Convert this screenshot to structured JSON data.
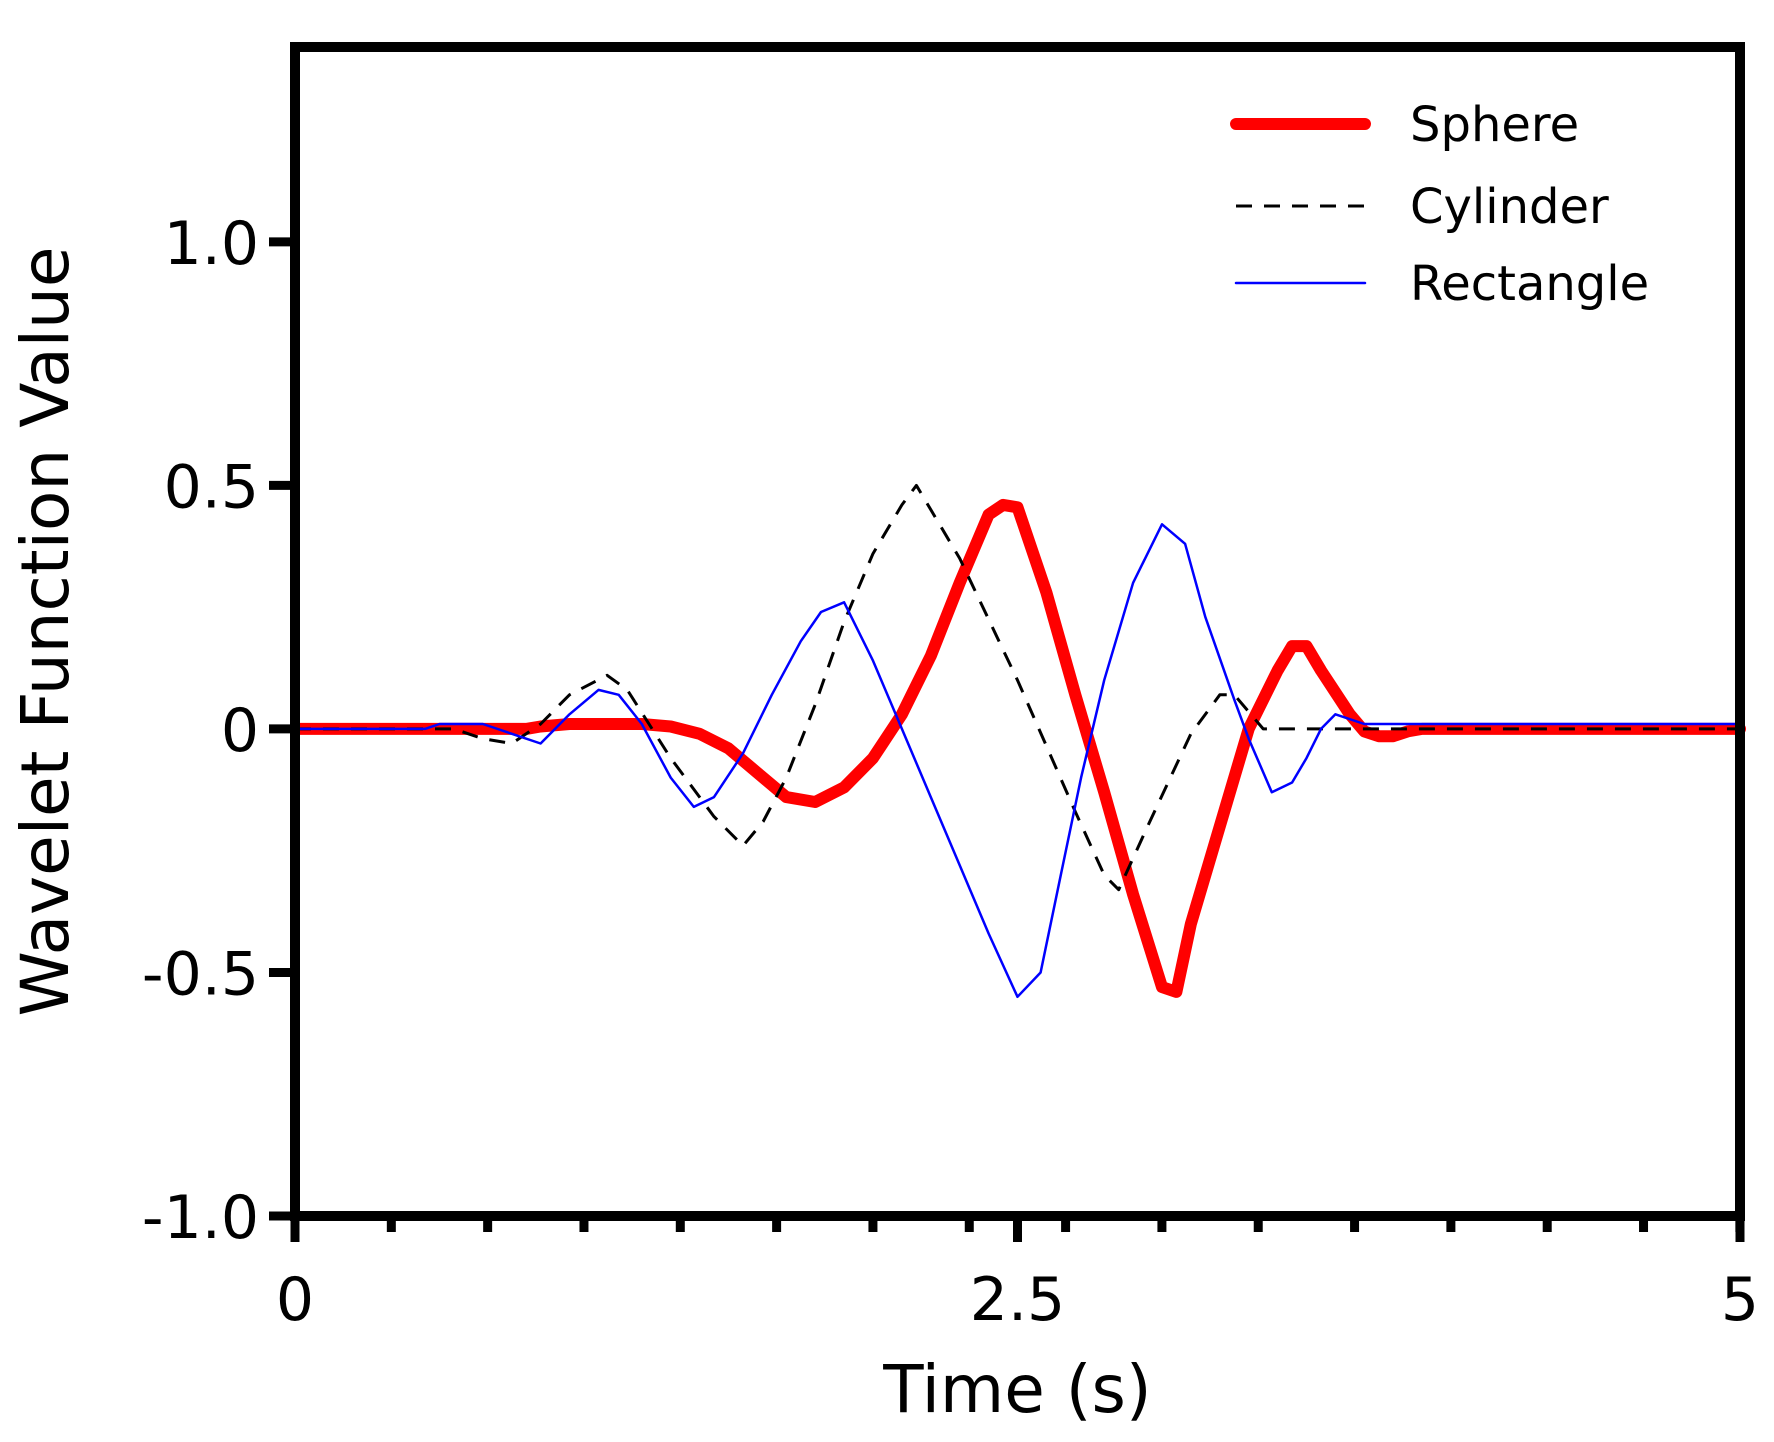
{
  "chart_data": {
    "type": "line",
    "title": "",
    "xlabel": "Time (s)",
    "ylabel": "Wavelet Function Value",
    "xlim": [
      0,
      5
    ],
    "ylim": [
      -1.0,
      1.4
    ],
    "xticks": [
      {
        "value": 0,
        "label": "0"
      },
      {
        "value": 2.5,
        "label": "2.5"
      },
      {
        "value": 5,
        "label": "5"
      }
    ],
    "x_minor_step": 0.3333,
    "yticks": [
      {
        "value": 1.0,
        "label": "1.0"
      },
      {
        "value": 0.5,
        "label": "0.5"
      },
      {
        "value": 0,
        "label": "0"
      },
      {
        "value": -0.5,
        "label": "-0.5"
      },
      {
        "value": -1.0,
        "label": "-1.0"
      }
    ],
    "grid": false,
    "legend_position": "top-right",
    "series": [
      {
        "name": "Sphere",
        "color": "#ff0000",
        "style": "solid-thick",
        "points": [
          [
            0,
            0
          ],
          [
            0.8,
            0
          ],
          [
            0.85,
            0.005
          ],
          [
            0.95,
            0.01
          ],
          [
            1.1,
            0.01
          ],
          [
            1.2,
            0.01
          ],
          [
            1.3,
            0.005
          ],
          [
            1.4,
            -0.01
          ],
          [
            1.5,
            -0.04
          ],
          [
            1.6,
            -0.09
          ],
          [
            1.7,
            -0.14
          ],
          [
            1.8,
            -0.15
          ],
          [
            1.9,
            -0.12
          ],
          [
            2.0,
            -0.06
          ],
          [
            2.1,
            0.03
          ],
          [
            2.2,
            0.15
          ],
          [
            2.3,
            0.3
          ],
          [
            2.4,
            0.44
          ],
          [
            2.45,
            0.46
          ],
          [
            2.5,
            0.455
          ],
          [
            2.6,
            0.28
          ],
          [
            2.7,
            0.07
          ],
          [
            2.8,
            -0.13
          ],
          [
            2.9,
            -0.34
          ],
          [
            3.0,
            -0.53
          ],
          [
            3.05,
            -0.54
          ],
          [
            3.1,
            -0.4
          ],
          [
            3.2,
            -0.2
          ],
          [
            3.3,
            0.0
          ],
          [
            3.4,
            0.12
          ],
          [
            3.45,
            0.17
          ],
          [
            3.5,
            0.17
          ],
          [
            3.55,
            0.12
          ],
          [
            3.65,
            0.03
          ],
          [
            3.7,
            -0.005
          ],
          [
            3.75,
            -0.015
          ],
          [
            3.8,
            -0.015
          ],
          [
            3.85,
            -0.005
          ],
          [
            3.9,
            0
          ],
          [
            5,
            0
          ]
        ]
      },
      {
        "name": "Cylinder",
        "color": "#000000",
        "style": "dashed",
        "points": [
          [
            0,
            0
          ],
          [
            0.55,
            0
          ],
          [
            0.65,
            -0.02
          ],
          [
            0.75,
            -0.03
          ],
          [
            0.85,
            0.01
          ],
          [
            0.95,
            0.07
          ],
          [
            1.08,
            0.11
          ],
          [
            1.15,
            0.08
          ],
          [
            1.3,
            -0.06
          ],
          [
            1.45,
            -0.18
          ],
          [
            1.55,
            -0.24
          ],
          [
            1.62,
            -0.19
          ],
          [
            1.7,
            -0.1
          ],
          [
            1.8,
            0.05
          ],
          [
            1.9,
            0.22
          ],
          [
            2.0,
            0.36
          ],
          [
            2.1,
            0.46
          ],
          [
            2.15,
            0.5
          ],
          [
            2.3,
            0.35
          ],
          [
            2.5,
            0.1
          ],
          [
            2.7,
            -0.17
          ],
          [
            2.8,
            -0.3
          ],
          [
            2.85,
            -0.33
          ],
          [
            2.95,
            -0.2
          ],
          [
            3.1,
            -0.01
          ],
          [
            3.2,
            0.07
          ],
          [
            3.25,
            0.07
          ],
          [
            3.35,
            0
          ],
          [
            5,
            0
          ]
        ]
      },
      {
        "name": "Rectangle",
        "color": "#0000ff",
        "style": "solid-thin",
        "points": [
          [
            0,
            0
          ],
          [
            0.45,
            0
          ],
          [
            0.5,
            0.01
          ],
          [
            0.65,
            0.01
          ],
          [
            0.75,
            -0.01
          ],
          [
            0.85,
            -0.03
          ],
          [
            0.95,
            0.03
          ],
          [
            1.05,
            0.08
          ],
          [
            1.12,
            0.07
          ],
          [
            1.2,
            0.01
          ],
          [
            1.3,
            -0.1
          ],
          [
            1.38,
            -0.16
          ],
          [
            1.45,
            -0.14
          ],
          [
            1.55,
            -0.05
          ],
          [
            1.65,
            0.07
          ],
          [
            1.75,
            0.18
          ],
          [
            1.82,
            0.24
          ],
          [
            1.9,
            0.26
          ],
          [
            2.0,
            0.14
          ],
          [
            2.1,
            0.0
          ],
          [
            2.2,
            -0.14
          ],
          [
            2.3,
            -0.28
          ],
          [
            2.4,
            -0.42
          ],
          [
            2.5,
            -0.55
          ],
          [
            2.58,
            -0.5
          ],
          [
            2.65,
            -0.3
          ],
          [
            2.72,
            -0.1
          ],
          [
            2.8,
            0.1
          ],
          [
            2.9,
            0.3
          ],
          [
            3.0,
            0.42
          ],
          [
            3.08,
            0.38
          ],
          [
            3.15,
            0.23
          ],
          [
            3.25,
            0.06
          ],
          [
            3.3,
            -0.02
          ],
          [
            3.38,
            -0.13
          ],
          [
            3.45,
            -0.11
          ],
          [
            3.5,
            -0.06
          ],
          [
            3.55,
            0.0
          ],
          [
            3.6,
            0.03
          ],
          [
            3.7,
            0.01
          ],
          [
            3.8,
            0.01
          ],
          [
            5,
            0.01
          ]
        ]
      }
    ]
  }
}
